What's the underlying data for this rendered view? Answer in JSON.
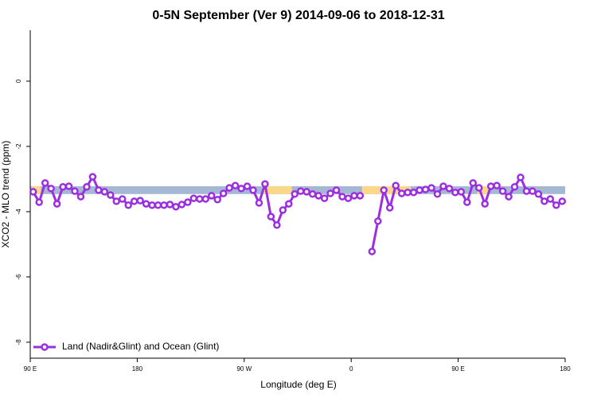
{
  "chart_data": {
    "type": "line",
    "title": "0-5N September (Ver 9)   2014-09-06 to 2018-12-31",
    "x_label": "Longitude (deg E)",
    "y_label": "XCO2 - MLO trend (ppm)",
    "xlim": [
      90,
      540
    ],
    "ylim": [
      -8.49,
      1.56
    ],
    "xticks": [
      {
        "value": 90,
        "label": "90 E"
      },
      {
        "value": 180,
        "label": "180"
      },
      {
        "value": 270,
        "label": "90 W"
      },
      {
        "value": 360,
        "label": "0"
      },
      {
        "value": 450,
        "label": "90 E"
      },
      {
        "value": 540,
        "label": "180"
      }
    ],
    "yticks": [
      0,
      -2,
      -4,
      -6,
      -8
    ],
    "legend_position": "bottom-left",
    "band": {
      "color": "#a4b8d4",
      "y": [
        -3.46,
        -3.22
      ],
      "segments": [
        {
          "color": "#fbd78a",
          "x": [
            91,
            99
          ]
        },
        {
          "color": "#fbd78a",
          "x": [
            285,
            310
          ]
        },
        {
          "color": "#fbd78a",
          "x": [
            369,
            410
          ]
        },
        {
          "color": "#fbd78a",
          "x": [
            466,
            476
          ]
        }
      ]
    },
    "x": [
      92.5,
      97.5,
      102.5,
      107.5,
      112.5,
      117.5,
      122.5,
      127.5,
      132.5,
      137.5,
      142.5,
      147.5,
      152.5,
      157.5,
      162.5,
      167.5,
      172.5,
      177.5,
      182.5,
      187.5,
      192.5,
      197.5,
      202.5,
      207.5,
      212.5,
      217.5,
      222.5,
      227.5,
      232.5,
      237.5,
      242.5,
      247.5,
      252.5,
      257.5,
      262.5,
      267.5,
      272.5,
      277.5,
      282.5,
      287.5,
      292.5,
      297.5,
      302.5,
      307.5,
      312.5,
      317.5,
      322.5,
      327.5,
      332.5,
      337.5,
      342.5,
      347.5,
      352.5,
      357.5,
      362.5,
      367.5,
      372.5,
      377.5,
      382.5,
      387.5,
      392.5,
      397.5,
      402.5,
      407.5,
      412.5,
      417.5,
      422.5,
      427.5,
      432.5,
      437.5,
      442.5,
      447.5,
      452.5,
      457.5,
      462.5,
      467.5,
      472.5,
      477.5,
      482.5,
      487.5,
      492.5,
      497.5,
      502.5,
      507.5,
      512.5,
      517.5,
      522.5,
      527.5,
      532.5,
      537.5
    ],
    "series": [
      {
        "name": "Land (Nadir&Glint) and Ocean (Glint)",
        "color": "#9b2fe0",
        "values": [
          -3.39,
          -3.71,
          -3.12,
          -3.29,
          -3.76,
          -3.24,
          -3.22,
          -3.37,
          -3.54,
          -3.24,
          -2.93,
          -3.34,
          -3.39,
          -3.49,
          -3.68,
          -3.61,
          -3.8,
          -3.68,
          -3.66,
          -3.76,
          -3.8,
          -3.8,
          -3.8,
          -3.78,
          -3.85,
          -3.78,
          -3.71,
          -3.59,
          -3.61,
          -3.61,
          -3.51,
          -3.63,
          -3.44,
          -3.27,
          -3.2,
          -3.29,
          -3.22,
          -3.34,
          -3.73,
          -3.15,
          -4.15,
          -4.41,
          -3.95,
          -3.76,
          -3.46,
          -3.37,
          -3.39,
          -3.46,
          -3.51,
          -3.59,
          -3.44,
          -3.34,
          -3.54,
          -3.59,
          -3.51,
          -3.51,
          null,
          -5.22,
          -4.29,
          -3.34,
          -3.88,
          -3.2,
          -3.44,
          -3.41,
          -3.41,
          -3.34,
          -3.32,
          -3.27,
          -3.46,
          -3.22,
          -3.29,
          -3.41,
          -3.39,
          -3.71,
          -3.12,
          -3.27,
          -3.76,
          -3.22,
          -3.2,
          -3.37,
          -3.54,
          -3.24,
          -2.95,
          -3.37,
          -3.37,
          -3.46,
          -3.68,
          -3.61,
          -3.8,
          -3.68
        ]
      }
    ]
  }
}
